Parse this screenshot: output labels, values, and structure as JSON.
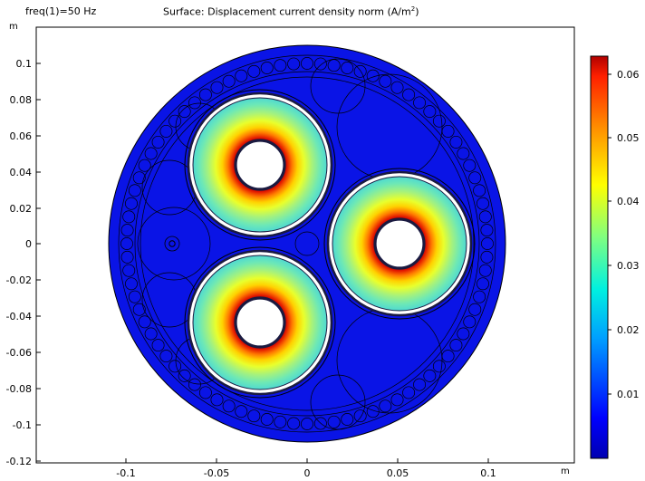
{
  "header": {
    "parameter_label": "freq(1)=50 Hz",
    "title_main": "Surface: Displacement current density norm (A/m",
    "title_sup": "2",
    "title_end": ")"
  },
  "axes": {
    "y_unit": "m",
    "x_unit": "m",
    "x_ticks": [
      "-0.1",
      "-0.05",
      "0",
      "0.05",
      "0.1"
    ],
    "y_ticks": [
      "0.1",
      "0.08",
      "0.06",
      "0.04",
      "0.02",
      "0",
      "-0.02",
      "-0.04",
      "-0.06",
      "-0.08",
      "-0.1",
      "-0.12"
    ]
  },
  "colorbar": {
    "ticks": [
      "0.06",
      "0.05",
      "0.04",
      "0.03",
      "0.02",
      "0.01"
    ]
  },
  "colors": {
    "background_field": "#0a14e6",
    "outline": "#000000",
    "insulation_outer": "#e9ff2c",
    "insulation_mid": "#57e2ca",
    "insulation_inner": "#e01200"
  }
}
